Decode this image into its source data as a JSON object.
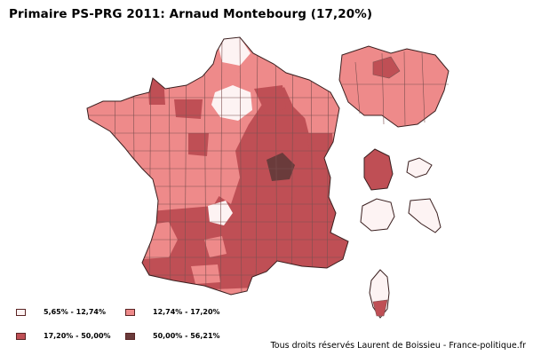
{
  "title": "Primaire PS-PRG 2011: Arnaud Montebourg (17,20%)",
  "colors": {
    "outline": "#3a1f1f",
    "border": "#7d5050"
  },
  "legend": [
    {
      "label": "5,65% - 12,74%",
      "color": "#fdf3f3"
    },
    {
      "label": "12,74% - 17,20%",
      "color": "#ee8a8a"
    },
    {
      "label": "17,20% - 50,00%",
      "color": "#bf4f55"
    },
    {
      "label": "50,00% - 56,21%",
      "color": "#6a3b3b"
    }
  ],
  "credits": "Tous droits réservés Laurent de Boissieu - France-politique.fr"
}
